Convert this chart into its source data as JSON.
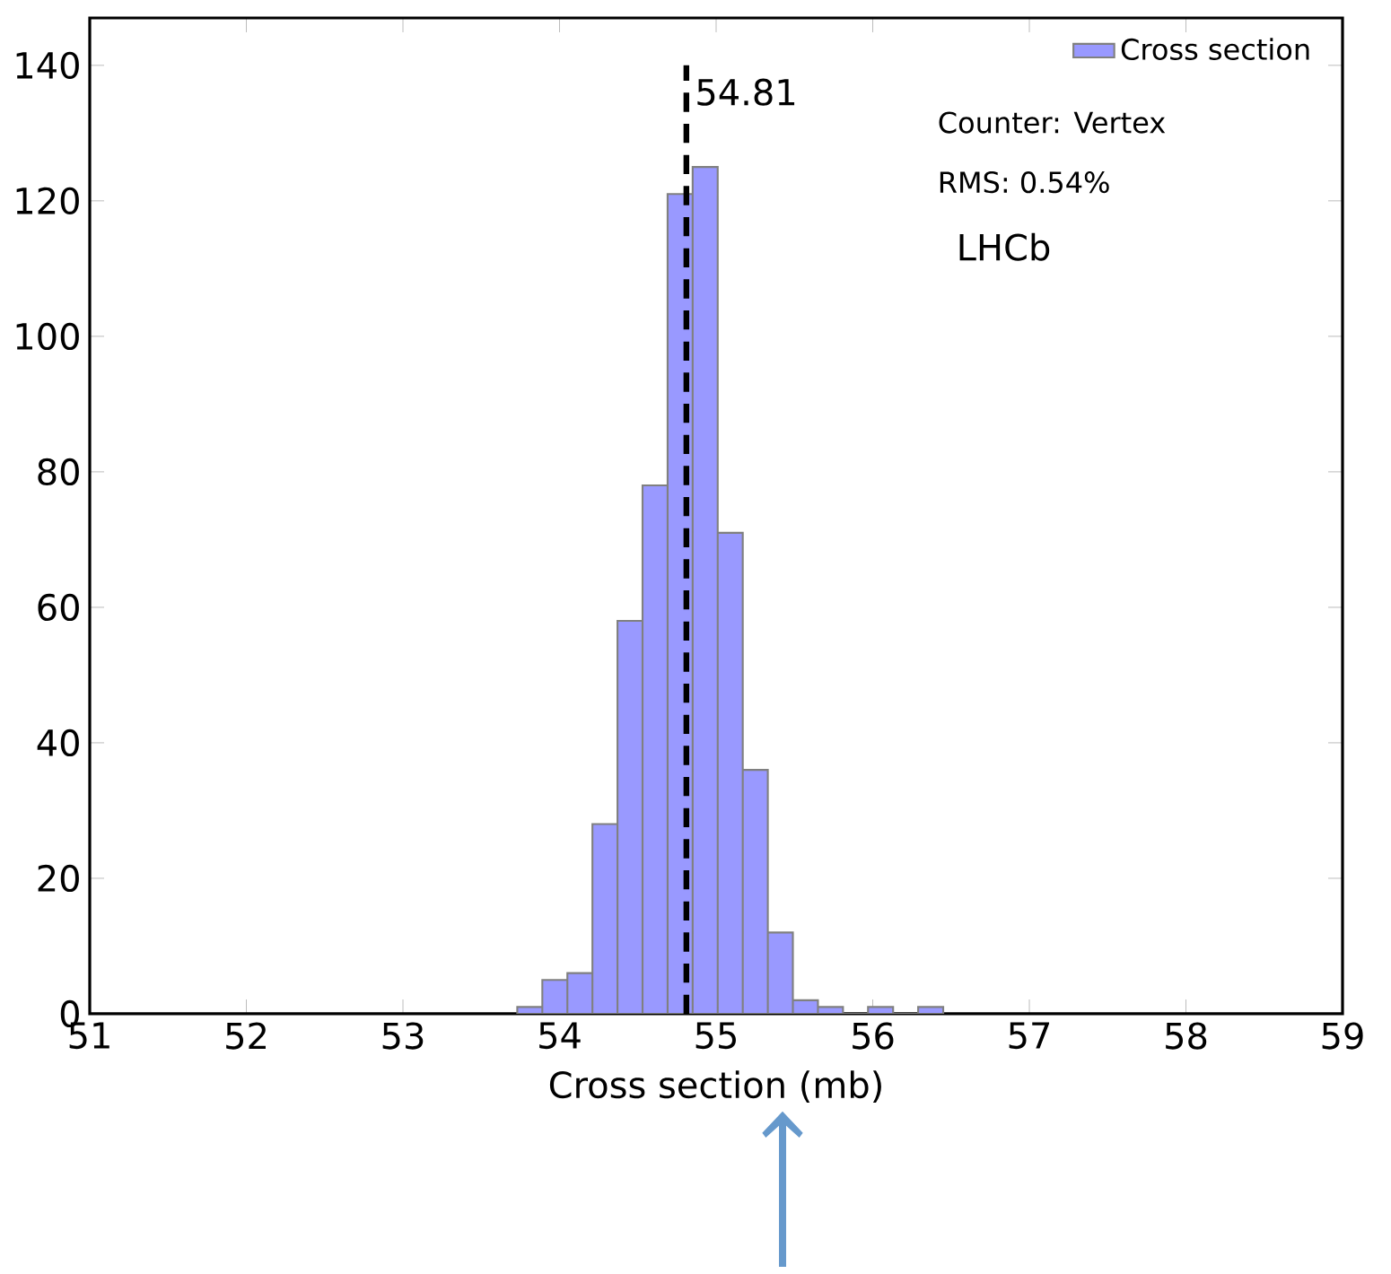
{
  "chart_data": {
    "type": "histogram",
    "xlabel": "Cross section (mb)",
    "bins": [
      53.73,
      53.89,
      54.05,
      54.21,
      54.37,
      54.53,
      54.69,
      54.85,
      55.01,
      55.17,
      55.33,
      55.49,
      55.65,
      55.81,
      55.97,
      56.13,
      56.29,
      56.45
    ],
    "series": [
      {
        "name": "Cross section",
        "color": "#9999ff",
        "values": [
          1,
          5,
          6,
          28,
          58,
          78,
          121,
          125,
          71,
          36,
          12,
          2,
          1,
          0,
          1,
          0,
          1
        ]
      }
    ],
    "xlim": [
      51,
      59
    ],
    "xticks": [
      51,
      52,
      53,
      54,
      55,
      56,
      57,
      58,
      59
    ],
    "ylim": [
      0,
      147
    ],
    "yticks": [
      0,
      20,
      40,
      60,
      80,
      100,
      120,
      140
    ],
    "ref_lines": [
      {
        "axis": "x",
        "value": 54.81,
        "label": "54.81",
        "color": "#000000",
        "line_style": "dashed"
      }
    ],
    "annotations": [
      "Counter: Vertex",
      "RMS: 0.54%",
      "LHCb"
    ],
    "legend": "top right",
    "grid": false
  }
}
